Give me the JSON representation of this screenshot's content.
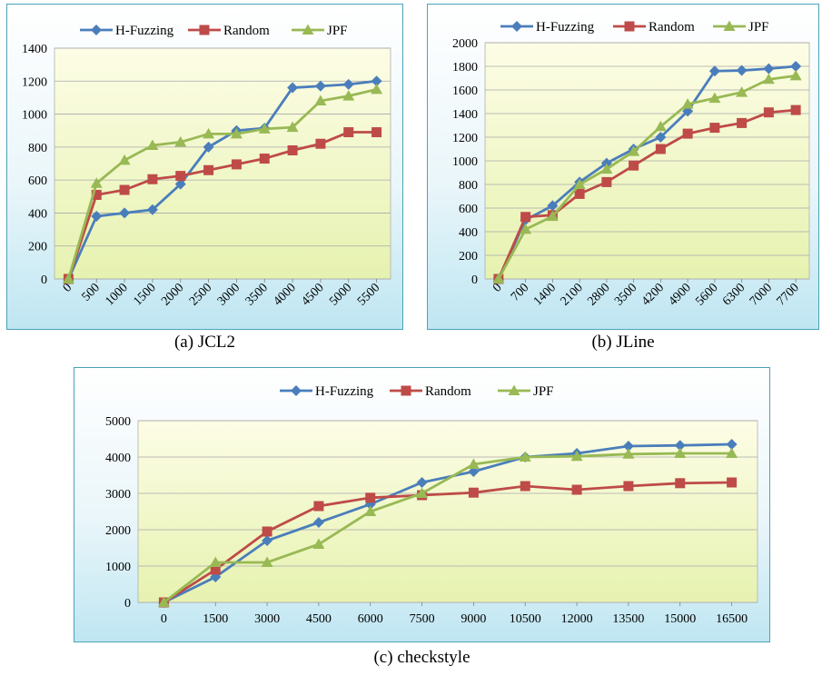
{
  "chart_data": [
    {
      "type": "line",
      "caption": "(a) JCL2",
      "categories": [
        "0",
        "500",
        "1000",
        "1500",
        "2000",
        "2500",
        "3000",
        "3500",
        "4000",
        "4500",
        "5000",
        "5500"
      ],
      "ylim": [
        0,
        1400
      ],
      "yticks": [
        0,
        200,
        400,
        600,
        800,
        1000,
        1200,
        1400
      ],
      "series": [
        {
          "name": "H-Fuzzing",
          "values": [
            0,
            380,
            400,
            420,
            575,
            800,
            900,
            915,
            1160,
            1170,
            1180,
            1200
          ]
        },
        {
          "name": "Random",
          "values": [
            0,
            510,
            540,
            605,
            625,
            660,
            695,
            730,
            780,
            820,
            890,
            890
          ]
        },
        {
          "name": "JPF",
          "values": [
            0,
            580,
            720,
            810,
            830,
            880,
            880,
            910,
            920,
            1080,
            1110,
            1150
          ]
        }
      ]
    },
    {
      "type": "line",
      "caption": "(b) JLine",
      "categories": [
        "0",
        "700",
        "1400",
        "2100",
        "2800",
        "3500",
        "4200",
        "4900",
        "5600",
        "6300",
        "7000",
        "7700"
      ],
      "ylim": [
        0,
        2000
      ],
      "yticks": [
        0,
        200,
        400,
        600,
        800,
        1000,
        1200,
        1400,
        1600,
        1800,
        2000
      ],
      "series": [
        {
          "name": "H-Fuzzing",
          "values": [
            0,
            500,
            620,
            820,
            980,
            1100,
            1200,
            1420,
            1760,
            1765,
            1780,
            1800
          ]
        },
        {
          "name": "Random",
          "values": [
            0,
            525,
            540,
            720,
            820,
            960,
            1100,
            1230,
            1280,
            1320,
            1410,
            1430
          ]
        },
        {
          "name": "JPF",
          "values": [
            0,
            420,
            530,
            800,
            930,
            1080,
            1290,
            1480,
            1530,
            1580,
            1690,
            1720
          ]
        }
      ]
    },
    {
      "type": "line",
      "caption": "(c) checkstyle",
      "categories": [
        "0",
        "1500",
        "3000",
        "4500",
        "6000",
        "7500",
        "9000",
        "10500",
        "12000",
        "13500",
        "15000",
        "16500"
      ],
      "ylim": [
        0,
        5000
      ],
      "yticks": [
        0,
        1000,
        2000,
        3000,
        4000,
        5000
      ],
      "series": [
        {
          "name": "H-Fuzzing",
          "values": [
            0,
            700,
            1700,
            2200,
            2700,
            3300,
            3600,
            4000,
            4100,
            4300,
            4320,
            4350
          ]
        },
        {
          "name": "Random",
          "values": [
            0,
            900,
            1950,
            2650,
            2880,
            2950,
            3020,
            3200,
            3100,
            3200,
            3280,
            3300
          ]
        },
        {
          "name": "JPF",
          "values": [
            0,
            1100,
            1100,
            1600,
            2500,
            3000,
            3800,
            4000,
            4020,
            4080,
            4100,
            4100
          ]
        }
      ]
    }
  ],
  "colors": {
    "H-Fuzzing": "#4a7ebb",
    "Random": "#be4b48",
    "JPF": "#98b954"
  }
}
